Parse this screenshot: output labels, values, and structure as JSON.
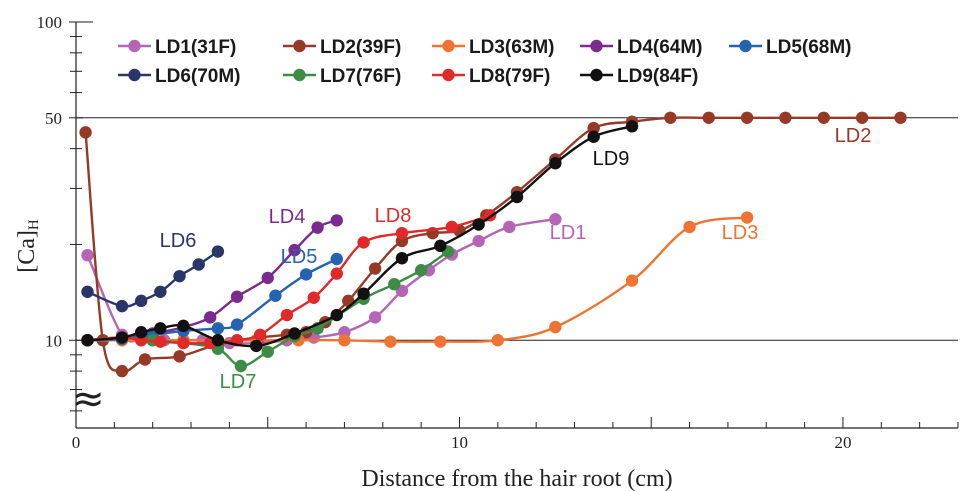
{
  "chart_data": {
    "type": "line",
    "xlabel": "Distance from the hair root (cm)",
    "ylabel": "[Ca]",
    "ylabel_sub": "H",
    "xlim": [
      0,
      23
    ],
    "ylim": [
      5.3,
      100
    ],
    "y_scale": "log",
    "x_ticks": [
      0,
      10,
      20
    ],
    "y_ticks_labeled": [
      10,
      50,
      100
    ],
    "y_reference_lines": [
      10,
      50
    ],
    "axis_break_symbol": "≈",
    "legend_placement": "top-left",
    "series": [
      {
        "name": "LD1(31F)",
        "label": "LD1",
        "color": "#b565b5",
        "x": [
          0.3,
          1.2,
          1.8,
          2.3,
          2.8,
          3.3,
          4.0,
          4.8,
          5.5,
          6.2,
          7.0,
          7.8,
          8.5,
          9.2,
          9.8,
          10.5,
          11.3,
          12.5
        ],
        "y": [
          18.5,
          10.4,
          10.2,
          10.0,
          10.0,
          10.0,
          9.8,
          9.8,
          10.0,
          10.2,
          10.6,
          11.8,
          14.3,
          16.6,
          18.6,
          20.5,
          22.7,
          24.0
        ]
      },
      {
        "name": "LD2(39F)",
        "label": "LD2",
        "color": "#963a28",
        "x": [
          0.25,
          0.7,
          1.2,
          1.8,
          2.7,
          3.7,
          4.8,
          5.5,
          6.0,
          6.5,
          7.1,
          7.8,
          8.5,
          9.3,
          10.0,
          10.7,
          11.5,
          12.5,
          13.5,
          14.5,
          15.5,
          16.5,
          17.5,
          18.5,
          19.5,
          20.5,
          21.5
        ],
        "y": [
          45.0,
          10.0,
          8.0,
          8.7,
          8.9,
          9.7,
          10.2,
          10.4,
          10.6,
          11.4,
          13.3,
          16.8,
          20.5,
          21.7,
          22.1,
          24.7,
          29.2,
          37.0,
          46.4,
          48.6,
          50.0,
          50.0,
          50.0,
          50.0,
          50.0,
          50.0,
          50.0
        ]
      },
      {
        "name": "LD3(63M)",
        "label": "LD3",
        "color": "#ee7433",
        "x": [
          0.3,
          1.2,
          2.0,
          2.8,
          3.7,
          4.7,
          5.8,
          7.0,
          8.2,
          9.5,
          11.0,
          12.5,
          14.5,
          16.0,
          17.5
        ],
        "y": [
          10.0,
          10.0,
          10.0,
          10.0,
          10.0,
          10.0,
          10.0,
          10.0,
          9.9,
          9.9,
          10.0,
          11.0,
          15.4,
          22.7,
          24.3
        ]
      },
      {
        "name": "LD4(64M)",
        "label": "LD4",
        "color": "#7b2b8f",
        "x": [
          0.3,
          1.2,
          2.0,
          2.8,
          3.5,
          4.2,
          5.0,
          5.7,
          6.3,
          6.8
        ],
        "y": [
          10.0,
          10.2,
          10.5,
          11.0,
          11.8,
          13.7,
          15.7,
          19.2,
          22.6,
          23.8
        ]
      },
      {
        "name": "LD5(68M)",
        "label": "LD5",
        "color": "#2563b0",
        "x": [
          0.3,
          1.2,
          2.0,
          2.8,
          3.7,
          4.2,
          5.2,
          6.0,
          6.8
        ],
        "y": [
          10.0,
          10.1,
          10.4,
          10.7,
          10.9,
          11.2,
          13.8,
          16.1,
          18.0
        ]
      },
      {
        "name": "LD6(70M)",
        "label": "LD6",
        "color": "#2a3668",
        "x": [
          0.3,
          1.2,
          1.7,
          2.2,
          2.7,
          3.2,
          3.7
        ],
        "y": [
          14.2,
          12.8,
          13.3,
          14.2,
          15.9,
          17.3,
          19.0
        ]
      },
      {
        "name": "LD7(76F)",
        "label": "LD7",
        "color": "#3d8c46",
        "x": [
          0.3,
          1.2,
          2.0,
          2.8,
          3.7,
          4.3,
          5.0,
          5.7,
          6.3,
          7.5,
          8.3,
          9.0,
          9.7
        ],
        "y": [
          10.0,
          10.2,
          10.0,
          9.8,
          9.4,
          8.3,
          9.2,
          10.3,
          10.9,
          13.5,
          15.0,
          16.6,
          19.0
        ]
      },
      {
        "name": "LD8(79F)",
        "label": "LD8",
        "color": "#e02a2a",
        "x": [
          0.3,
          1.2,
          1.7,
          2.2,
          2.8,
          3.5,
          4.2,
          4.8,
          5.5,
          6.2,
          6.8,
          7.5,
          8.5,
          9.8,
          10.8
        ],
        "y": [
          10.0,
          10.2,
          10.0,
          9.9,
          9.8,
          9.8,
          10.0,
          10.4,
          12.0,
          13.6,
          16.2,
          20.3,
          21.7,
          22.7,
          24.7
        ]
      },
      {
        "name": "LD9(84F)",
        "label": "LD9",
        "color": "#111111",
        "x": [
          0.3,
          1.2,
          1.7,
          2.2,
          2.8,
          3.7,
          4.7,
          5.7,
          6.8,
          7.5,
          8.5,
          9.5,
          10.5,
          11.5,
          12.5,
          13.5,
          14.5
        ],
        "y": [
          10.0,
          10.2,
          10.6,
          10.9,
          11.1,
          10.0,
          9.6,
          10.5,
          12.0,
          14.0,
          18.1,
          19.8,
          23.1,
          28.2,
          36.0,
          43.6,
          47.0
        ]
      }
    ]
  }
}
